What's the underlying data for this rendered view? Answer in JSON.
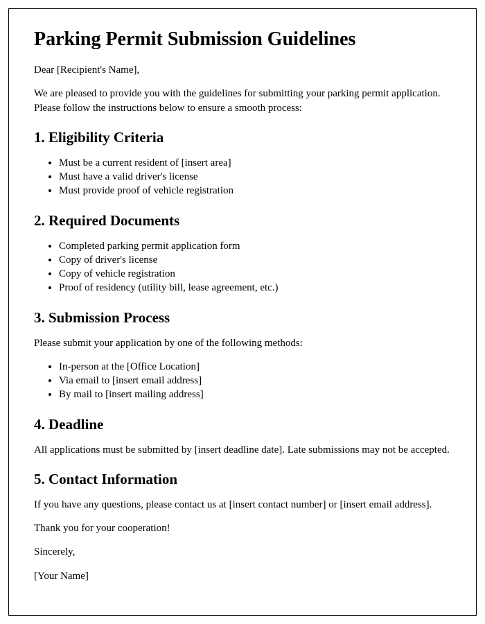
{
  "title": "Parking Permit Submission Guidelines",
  "greeting": "Dear [Recipient's Name],",
  "intro": "We are pleased to provide you with the guidelines for submitting your parking permit application. Please follow the instructions below to ensure a smooth process:",
  "section1": {
    "heading": "1. Eligibility Criteria",
    "items": [
      "Must be a current resident of [insert area]",
      "Must have a valid driver's license",
      "Must provide proof of vehicle registration"
    ]
  },
  "section2": {
    "heading": "2. Required Documents",
    "items": [
      "Completed parking permit application form",
      "Copy of driver's license",
      "Copy of vehicle registration",
      "Proof of residency (utility bill, lease agreement, etc.)"
    ]
  },
  "section3": {
    "heading": "3. Submission Process",
    "intro": "Please submit your application by one of the following methods:",
    "items": [
      "In-person at the [Office Location]",
      "Via email to [insert email address]",
      "By mail to [insert mailing address]"
    ]
  },
  "section4": {
    "heading": "4. Deadline",
    "text": "All applications must be submitted by [insert deadline date]. Late submissions may not be accepted."
  },
  "section5": {
    "heading": "5. Contact Information",
    "text": "If you have any questions, please contact us at [insert contact number] or [insert email address]."
  },
  "closing_thanks": "Thank you for your cooperation!",
  "closing_sincerely": "Sincerely,",
  "closing_name": "[Your Name]"
}
